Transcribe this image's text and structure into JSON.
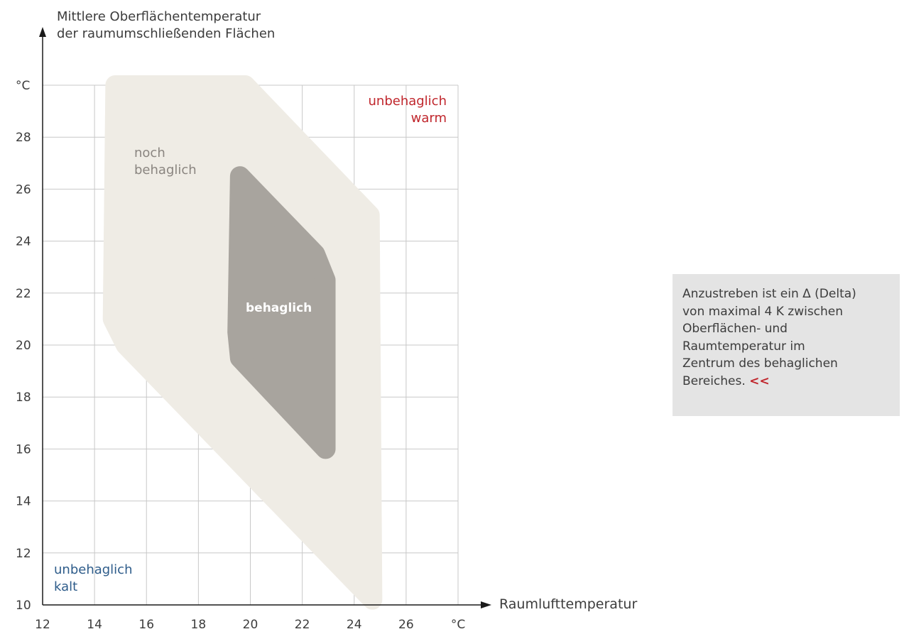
{
  "chart_data": {
    "type": "area",
    "y_axis_title": [
      "Mittlere Oberflächentemperatur",
      "der raumumschließenden Flächen"
    ],
    "x_axis_title": "Raumlufttemperatur",
    "unit_label": "°C",
    "xlim": [
      12,
      28
    ],
    "ylim": [
      10,
      30
    ],
    "x_ticks": [
      "12",
      "14",
      "16",
      "18",
      "20",
      "22",
      "24",
      "26",
      "°C"
    ],
    "y_ticks": [
      "10",
      "12",
      "14",
      "16",
      "18",
      "20",
      "22",
      "24",
      "26",
      "28",
      "°C"
    ],
    "grid": true,
    "regions": [
      {
        "label": [
          "noch",
          "behaglich"
        ],
        "color": "#efece5",
        "polygon": [
          [
            14.8,
            30
          ],
          [
            19.8,
            30
          ],
          [
            24.6,
            25
          ],
          [
            24.7,
            10.2
          ],
          [
            15.2,
            20
          ],
          [
            14.7,
            21
          ]
        ]
      },
      {
        "label": [
          "behaglich"
        ],
        "color": "#a8a49e",
        "polygon": [
          [
            19.6,
            26.5
          ],
          [
            22.5,
            23.5
          ],
          [
            22.9,
            22.5
          ],
          [
            22.9,
            16.0
          ],
          [
            19.6,
            19.5
          ],
          [
            19.5,
            20.5
          ]
        ]
      }
    ],
    "annotations": {
      "warm": [
        "unbehaglich",
        "warm"
      ],
      "cold": [
        "unbehaglich",
        "kalt"
      ]
    },
    "colors": {
      "warm": "#c0262c",
      "cold": "#2e5c8a",
      "outer": "#efece5",
      "inner": "#a8a49e",
      "grid": "#c8c8c8"
    }
  },
  "note": {
    "lines": [
      "Anzustreben ist ein Δ (Delta)",
      "von maximal 4 K zwischen",
      "Oberflächen- und",
      "Raumtemperatur im",
      "Zentrum des behaglichen",
      "Bereiches."
    ],
    "marker": "<<"
  }
}
